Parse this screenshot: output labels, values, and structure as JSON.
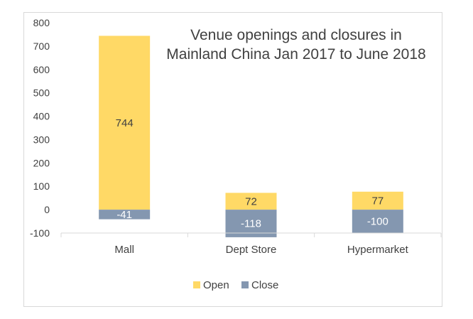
{
  "chart_data": {
    "type": "bar",
    "stacked": true,
    "title": [
      "Venue openings and closures in",
      "Mainland China Jan 2017 to June 2018"
    ],
    "categories": [
      "Mall",
      "Dept Store",
      "Hypermarket"
    ],
    "series": [
      {
        "name": "Open",
        "values": [
          744,
          72,
          77
        ],
        "color": "#FFD966",
        "label_color": "#404040"
      },
      {
        "name": "Close",
        "values": [
          -41,
          -118,
          -100
        ],
        "color": "#8497B0",
        "label_color": "#ffffff"
      }
    ],
    "data_labels": [
      [
        "744",
        "72",
        "77"
      ],
      [
        "-41",
        "-118",
        "-100"
      ]
    ],
    "ylim": [
      -100,
      800
    ],
    "yticks": [
      -100,
      0,
      100,
      200,
      300,
      400,
      500,
      600,
      700,
      800
    ],
    "ytick_labels": [
      "-100",
      "0",
      "100",
      "200",
      "300",
      "400",
      "500",
      "600",
      "700",
      "800"
    ],
    "grid": false,
    "legend_position": "bottom",
    "xlabel": "",
    "ylabel": ""
  }
}
